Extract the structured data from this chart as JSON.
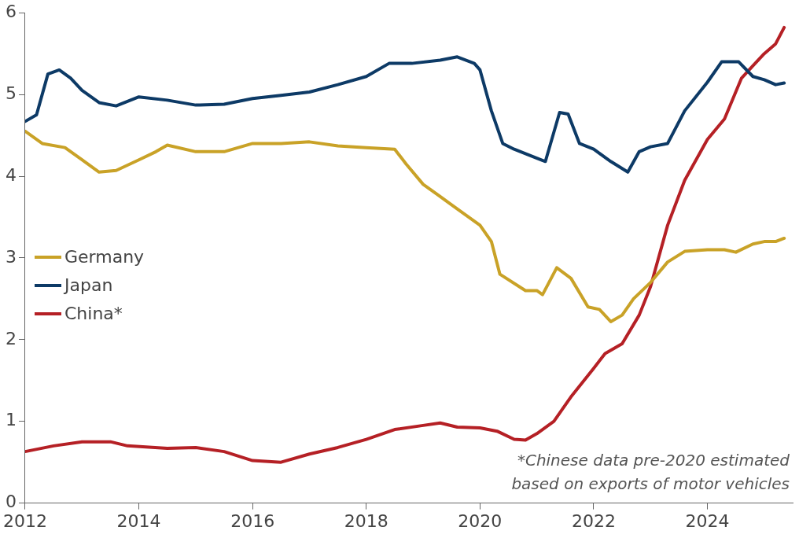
{
  "chart_data": {
    "type": "line",
    "xlim": [
      2012,
      2025.5
    ],
    "xticks": [
      2012,
      2014,
      2016,
      2018,
      2020,
      2022,
      2024
    ],
    "ylim": [
      0,
      6
    ],
    "yticks": [
      0,
      1,
      2,
      3,
      4,
      5,
      6
    ],
    "grid": false,
    "legend": "left",
    "marker": "none",
    "line_style": "solid",
    "annotations": [
      "*Chinese data pre-2020 estimated based on exports of motor vehicles"
    ],
    "series": [
      {
        "name": "Germany",
        "color": "#c9a227",
        "x": [
          2012.0,
          2012.3,
          2012.7,
          2013.0,
          2013.3,
          2013.6,
          2014.0,
          2014.3,
          2014.5,
          2015.0,
          2015.5,
          2016.0,
          2016.5,
          2017.0,
          2017.5,
          2018.0,
          2018.5,
          2018.7,
          2019.0,
          2019.3,
          2019.6,
          2020.0,
          2020.2,
          2020.35,
          2020.8,
          2021.0,
          2021.1,
          2021.35,
          2021.6,
          2021.9,
          2022.1,
          2022.3,
          2022.5,
          2022.7,
          2023.0,
          2023.3,
          2023.6,
          2024.0,
          2024.3,
          2024.5,
          2024.8,
          2025.0,
          2025.2,
          2025.35
        ],
        "values": [
          4.55,
          4.4,
          4.35,
          4.2,
          4.05,
          4.07,
          4.2,
          4.3,
          4.38,
          4.3,
          4.3,
          4.4,
          4.4,
          4.42,
          4.37,
          4.35,
          4.33,
          4.15,
          3.9,
          3.75,
          3.6,
          3.4,
          3.2,
          2.8,
          2.6,
          2.6,
          2.55,
          2.88,
          2.75,
          2.4,
          2.37,
          2.22,
          2.3,
          2.5,
          2.7,
          2.95,
          3.08,
          3.1,
          3.1,
          3.07,
          3.17,
          3.2,
          3.2,
          3.24
        ]
      },
      {
        "name": "Japan",
        "color": "#0d3a66",
        "x": [
          2012.0,
          2012.2,
          2012.4,
          2012.6,
          2012.8,
          2013.0,
          2013.3,
          2013.6,
          2014.0,
          2014.5,
          2015.0,
          2015.5,
          2016.0,
          2016.5,
          2017.0,
          2017.5,
          2018.0,
          2018.4,
          2018.8,
          2019.3,
          2019.6,
          2019.9,
          2020.0,
          2020.2,
          2020.4,
          2020.6,
          2021.0,
          2021.15,
          2021.4,
          2021.55,
          2021.75,
          2022.0,
          2022.3,
          2022.6,
          2022.8,
          2023.0,
          2023.3,
          2023.6,
          2024.0,
          2024.25,
          2024.55,
          2024.8,
          2025.0,
          2025.2,
          2025.35
        ],
        "values": [
          4.67,
          4.75,
          5.25,
          5.3,
          5.2,
          5.05,
          4.9,
          4.86,
          4.97,
          4.93,
          4.87,
          4.88,
          4.95,
          4.99,
          5.03,
          5.12,
          5.22,
          5.38,
          5.38,
          5.42,
          5.46,
          5.38,
          5.3,
          4.8,
          4.4,
          4.33,
          4.22,
          4.18,
          4.78,
          4.76,
          4.4,
          4.33,
          4.18,
          4.05,
          4.3,
          4.36,
          4.4,
          4.8,
          5.15,
          5.4,
          5.4,
          5.22,
          5.18,
          5.12,
          5.14
        ]
      },
      {
        "name": "China*",
        "color": "#b52025",
        "x": [
          2012.0,
          2012.5,
          2013.0,
          2013.5,
          2013.8,
          2014.5,
          2015.0,
          2015.5,
          2016.0,
          2016.5,
          2017.0,
          2017.5,
          2018.0,
          2018.5,
          2019.0,
          2019.3,
          2019.6,
          2020.0,
          2020.3,
          2020.6,
          2020.8,
          2021.0,
          2021.3,
          2021.6,
          2022.0,
          2022.2,
          2022.5,
          2022.8,
          2023.0,
          2023.3,
          2023.6,
          2024.0,
          2024.3,
          2024.6,
          2024.8,
          2025.0,
          2025.2,
          2025.35
        ],
        "values": [
          0.63,
          0.7,
          0.75,
          0.75,
          0.7,
          0.67,
          0.68,
          0.63,
          0.52,
          0.5,
          0.6,
          0.68,
          0.78,
          0.9,
          0.95,
          0.98,
          0.93,
          0.92,
          0.88,
          0.78,
          0.77,
          0.85,
          1.0,
          1.3,
          1.65,
          1.83,
          1.95,
          2.3,
          2.65,
          3.4,
          3.95,
          4.45,
          4.7,
          5.2,
          5.35,
          5.5,
          5.62,
          5.82
        ]
      }
    ]
  }
}
